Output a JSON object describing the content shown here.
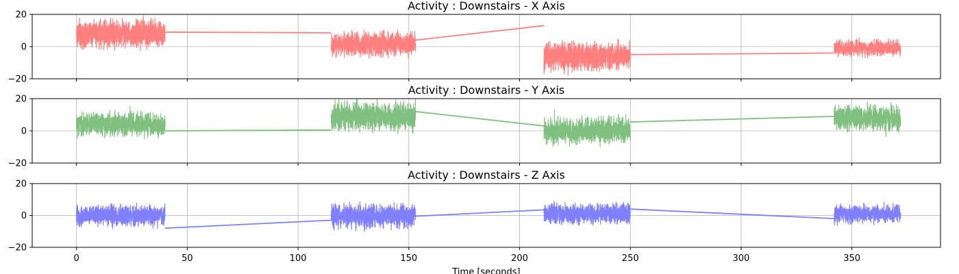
{
  "chart_data": [
    {
      "type": "line",
      "title": "Activity : Downstairs - X Axis",
      "xlabel": "",
      "ylabel": "",
      "xlim": [
        -20,
        390
      ],
      "ylim": [
        -20,
        20
      ],
      "xticks": [
        0,
        50,
        100,
        150,
        200,
        250,
        300,
        350
      ],
      "yticks": [
        -20,
        0,
        20
      ],
      "show_x_tick_labels": false,
      "grid": true,
      "series": [
        {
          "color": "#ff7f7f",
          "segments": [
            {
              "start": 0,
              "end": 40,
              "mean": 8,
              "amplitude": 12,
              "seed": 11
            },
            {
              "start": 115,
              "end": 153,
              "mean": 2,
              "amplitude": 10,
              "seed": 12
            },
            {
              "start": 211,
              "end": 250,
              "mean": -6,
              "amplitude": 12,
              "seed": 13
            },
            {
              "start": 342,
              "end": 372,
              "mean": -1,
              "amplitude": 7,
              "seed": 14
            }
          ],
          "connectors": [
            [
              [
                40,
                9
              ],
              [
                115,
                8.5
              ]
            ],
            [
              [
                153,
                4
              ],
              [
                211,
                13
              ]
            ],
            [
              [
                250,
                -5
              ],
              [
                342,
                -4
              ]
            ]
          ]
        }
      ]
    },
    {
      "type": "line",
      "title": "Activity : Downstairs - Y Axis",
      "xlabel": "",
      "ylabel": "",
      "xlim": [
        -20,
        390
      ],
      "ylim": [
        -20,
        20
      ],
      "xticks": [
        0,
        50,
        100,
        150,
        200,
        250,
        300,
        350
      ],
      "yticks": [
        -20,
        0,
        20
      ],
      "show_x_tick_labels": false,
      "grid": true,
      "series": [
        {
          "color": "#7fbf7f",
          "segments": [
            {
              "start": 0,
              "end": 40,
              "mean": 4,
              "amplitude": 10,
              "seed": 21
            },
            {
              "start": 115,
              "end": 153,
              "mean": 9,
              "amplitude": 12,
              "seed": 22
            },
            {
              "start": 211,
              "end": 250,
              "mean": 0,
              "amplitude": 11,
              "seed": 23
            },
            {
              "start": 342,
              "end": 372,
              "mean": 8,
              "amplitude": 11,
              "seed": 24
            }
          ],
          "connectors": [
            [
              [
                40,
                0
              ],
              [
                115,
                0.5
              ]
            ],
            [
              [
                153,
                12
              ],
              [
                211,
                3
              ]
            ],
            [
              [
                250,
                5.5
              ],
              [
                342,
                9
              ]
            ]
          ]
        }
      ]
    },
    {
      "type": "line",
      "title": "Activity : Downstairs - Z Axis",
      "xlabel": "Time [seconds]",
      "ylabel": "",
      "xlim": [
        -20,
        390
      ],
      "ylim": [
        -20,
        20
      ],
      "xticks": [
        0,
        50,
        100,
        150,
        200,
        250,
        300,
        350
      ],
      "yticks": [
        -20,
        0,
        20
      ],
      "show_x_tick_labels": true,
      "grid": true,
      "series": [
        {
          "color": "#7f7fff",
          "segments": [
            {
              "start": 0,
              "end": 40,
              "mean": 0,
              "amplitude": 9,
              "seed": 31
            },
            {
              "start": 115,
              "end": 153,
              "mean": 0,
              "amplitude": 10,
              "seed": 32
            },
            {
              "start": 211,
              "end": 250,
              "mean": 1,
              "amplitude": 9,
              "seed": 33
            },
            {
              "start": 342,
              "end": 372,
              "mean": 1,
              "amplitude": 8,
              "seed": 34
            }
          ],
          "connectors": [
            [
              [
                40,
                -8
              ],
              [
                115,
                -3
              ]
            ],
            [
              [
                153,
                -0.5
              ],
              [
                211,
                3.5
              ]
            ],
            [
              [
                250,
                4
              ],
              [
                342,
                -2
              ]
            ]
          ]
        }
      ]
    }
  ]
}
